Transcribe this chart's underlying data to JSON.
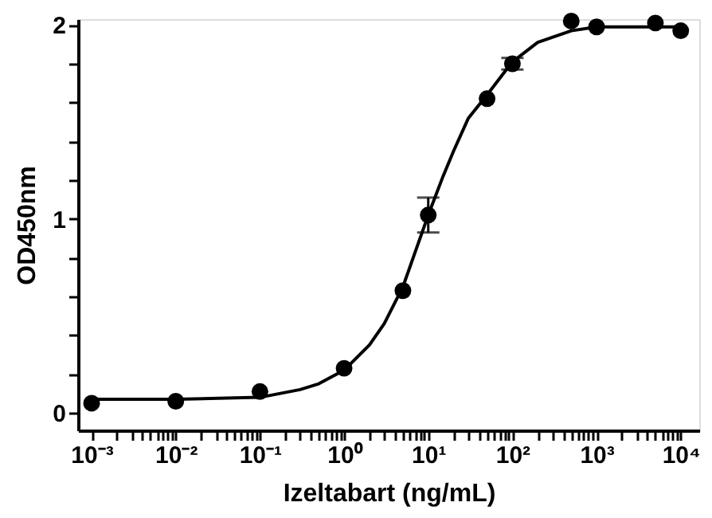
{
  "chart_data": {
    "type": "scatter",
    "xlabel": "Izeltabart (ng/mL)",
    "ylabel": "OD450nm",
    "log": "x",
    "grid": false,
    "xlim": [
      0.00069,
      16600
    ],
    "ylim": [
      -0.09,
      2.03
    ],
    "xticks": [
      {
        "value": 0.001,
        "label": "10⁻³"
      },
      {
        "value": 0.002,
        "label": null
      },
      {
        "value": 0.003,
        "label": null
      },
      {
        "value": 0.004,
        "label": null
      },
      {
        "value": 0.005,
        "label": null
      },
      {
        "value": 0.006,
        "label": null
      },
      {
        "value": 0.007,
        "label": null
      },
      {
        "value": 0.008,
        "label": null
      },
      {
        "value": 0.009,
        "label": null
      },
      {
        "value": 0.01,
        "label": "10⁻²"
      },
      {
        "value": 0.02,
        "label": null
      },
      {
        "value": 0.03,
        "label": null
      },
      {
        "value": 0.04,
        "label": null
      },
      {
        "value": 0.05,
        "label": null
      },
      {
        "value": 0.06,
        "label": null
      },
      {
        "value": 0.07,
        "label": null
      },
      {
        "value": 0.08,
        "label": null
      },
      {
        "value": 0.09,
        "label": null
      },
      {
        "value": 0.1,
        "label": "10⁻¹"
      },
      {
        "value": 0.2,
        "label": null
      },
      {
        "value": 0.3,
        "label": null
      },
      {
        "value": 0.4,
        "label": null
      },
      {
        "value": 0.5,
        "label": null
      },
      {
        "value": 0.6,
        "label": null
      },
      {
        "value": 0.7,
        "label": null
      },
      {
        "value": 0.8,
        "label": null
      },
      {
        "value": 0.9,
        "label": null
      },
      {
        "value": 1,
        "label": "10⁰"
      },
      {
        "value": 2,
        "label": null
      },
      {
        "value": 3,
        "label": null
      },
      {
        "value": 4,
        "label": null
      },
      {
        "value": 5,
        "label": null
      },
      {
        "value": 6,
        "label": null
      },
      {
        "value": 7,
        "label": null
      },
      {
        "value": 8,
        "label": null
      },
      {
        "value": 9,
        "label": null
      },
      {
        "value": 10,
        "label": "10¹"
      },
      {
        "value": 20,
        "label": null
      },
      {
        "value": 30,
        "label": null
      },
      {
        "value": 40,
        "label": null
      },
      {
        "value": 50,
        "label": null
      },
      {
        "value": 60,
        "label": null
      },
      {
        "value": 70,
        "label": null
      },
      {
        "value": 80,
        "label": null
      },
      {
        "value": 90,
        "label": null
      },
      {
        "value": 100,
        "label": "10²"
      },
      {
        "value": 200,
        "label": null
      },
      {
        "value": 300,
        "label": null
      },
      {
        "value": 400,
        "label": null
      },
      {
        "value": 500,
        "label": null
      },
      {
        "value": 600,
        "label": null
      },
      {
        "value": 700,
        "label": null
      },
      {
        "value": 800,
        "label": null
      },
      {
        "value": 900,
        "label": null
      },
      {
        "value": 1000,
        "label": "10³"
      },
      {
        "value": 2000,
        "label": null
      },
      {
        "value": 3000,
        "label": null
      },
      {
        "value": 4000,
        "label": null
      },
      {
        "value": 5000,
        "label": null
      },
      {
        "value": 6000,
        "label": null
      },
      {
        "value": 7000,
        "label": null
      },
      {
        "value": 8000,
        "label": null
      },
      {
        "value": 9000,
        "label": null
      },
      {
        "value": 10000,
        "label": "10⁴"
      }
    ],
    "yticks": [
      0,
      {
        "value": 0.2,
        "label": null
      },
      {
        "value": 0.4,
        "label": null
      },
      {
        "value": 0.6,
        "label": null
      },
      {
        "value": 0.8,
        "label": null
      },
      1,
      {
        "value": 1.2,
        "label": null
      },
      {
        "value": 1.4,
        "label": null
      },
      {
        "value": 1.6,
        "label": null
      },
      {
        "value": 1.8,
        "label": null
      },
      2
    ],
    "series": [
      {
        "type": "line",
        "color": "#000000",
        "marker": "none",
        "line_style": "solid",
        "x": [
          0.001,
          0.01,
          0.1,
          0.3,
          0.5,
          1,
          2,
          3,
          5,
          7,
          10,
          15,
          20,
          30,
          50,
          100,
          200,
          500,
          1000,
          10000
        ],
        "values": [
          0.07,
          0.07,
          0.08,
          0.12,
          0.15,
          0.22,
          0.35,
          0.46,
          0.65,
          0.83,
          1.02,
          1.22,
          1.35,
          1.52,
          1.64,
          1.81,
          1.91,
          1.97,
          1.99,
          1.99
        ]
      },
      {
        "type": "scatter",
        "color": "#000000",
        "marker": "circle",
        "x": [
          0.001,
          0.01,
          0.1,
          1,
          5,
          10,
          50,
          100,
          500,
          1000,
          5000,
          10000
        ],
        "values": [
          0.05,
          0.06,
          0.11,
          0.23,
          0.63,
          1.02,
          1.62,
          1.8,
          2.02,
          1.99,
          2.01,
          1.97
        ],
        "errors": [
          null,
          null,
          null,
          null,
          null,
          0.09,
          null,
          0.03,
          null,
          null,
          null,
          null
        ]
      }
    ]
  }
}
